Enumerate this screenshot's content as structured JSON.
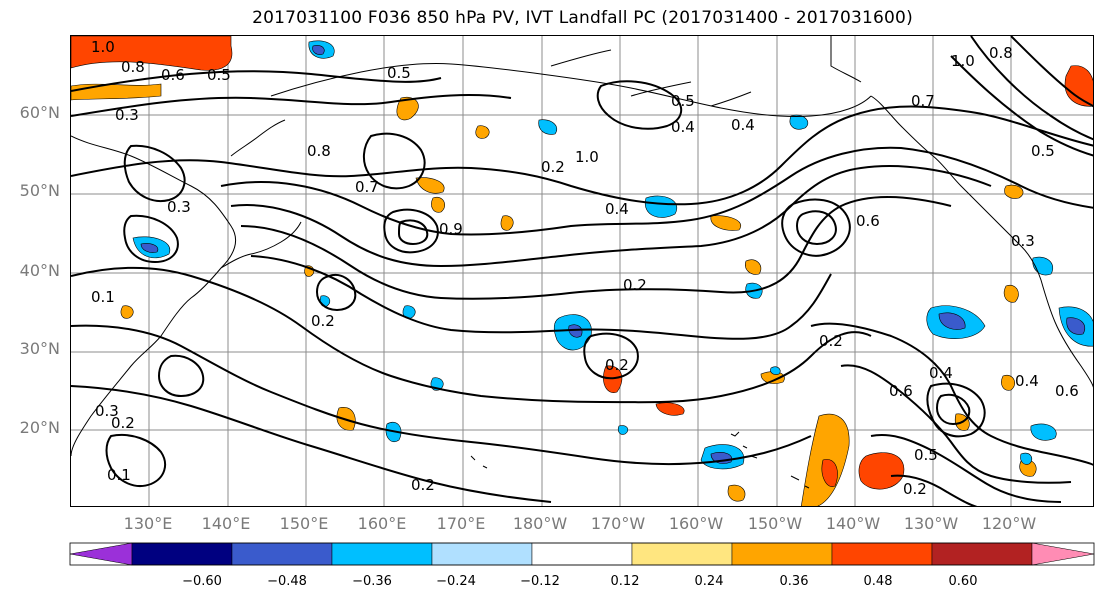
{
  "title": "2017031100 F036 850 hPa PV, IVT Landfall PC (2017031400 - 2017031600)",
  "lat_labels": [
    "60°N",
    "50°N",
    "40°N",
    "30°N",
    "20°N"
  ],
  "lon_labels": [
    "130°E",
    "140°E",
    "150°E",
    "160°E",
    "170°E",
    "180°W",
    "170°W",
    "160°W",
    "150°W",
    "140°W",
    "130°W",
    "120°W"
  ],
  "colorbar": {
    "colors": [
      "#9b30d9",
      "#000080",
      "#3a5bcc",
      "#00bfff",
      "#b0e0ff",
      "#ffffff",
      "#ffe680",
      "#ffa500",
      "#ff4500",
      "#b22222",
      "#ff8cb4"
    ],
    "ticks": [
      "−0.60",
      "−0.48",
      "−0.36",
      "−0.24",
      "−0.12",
      "0.12",
      "0.24",
      "0.36",
      "0.48",
      "0.60"
    ]
  },
  "contour_labels": [
    "1.0",
    "0.8",
    "0.6",
    "0.5",
    "0.3",
    "0.5",
    "0.7",
    "0.8",
    "0.9",
    "0.4",
    "0.2",
    "0.3",
    "0.2",
    "0.1",
    "1.0",
    "0.5",
    "0.4",
    "0.2",
    "0.2",
    "0.2",
    "0.6",
    "0.4",
    "0.6",
    "0.5",
    "0.2",
    "0.4",
    "0.2",
    "0.3",
    "0.6",
    "0.8",
    "1.0",
    "0.7",
    "0.5",
    "0.4",
    "0.3",
    "0.2",
    "0.1"
  ]
}
